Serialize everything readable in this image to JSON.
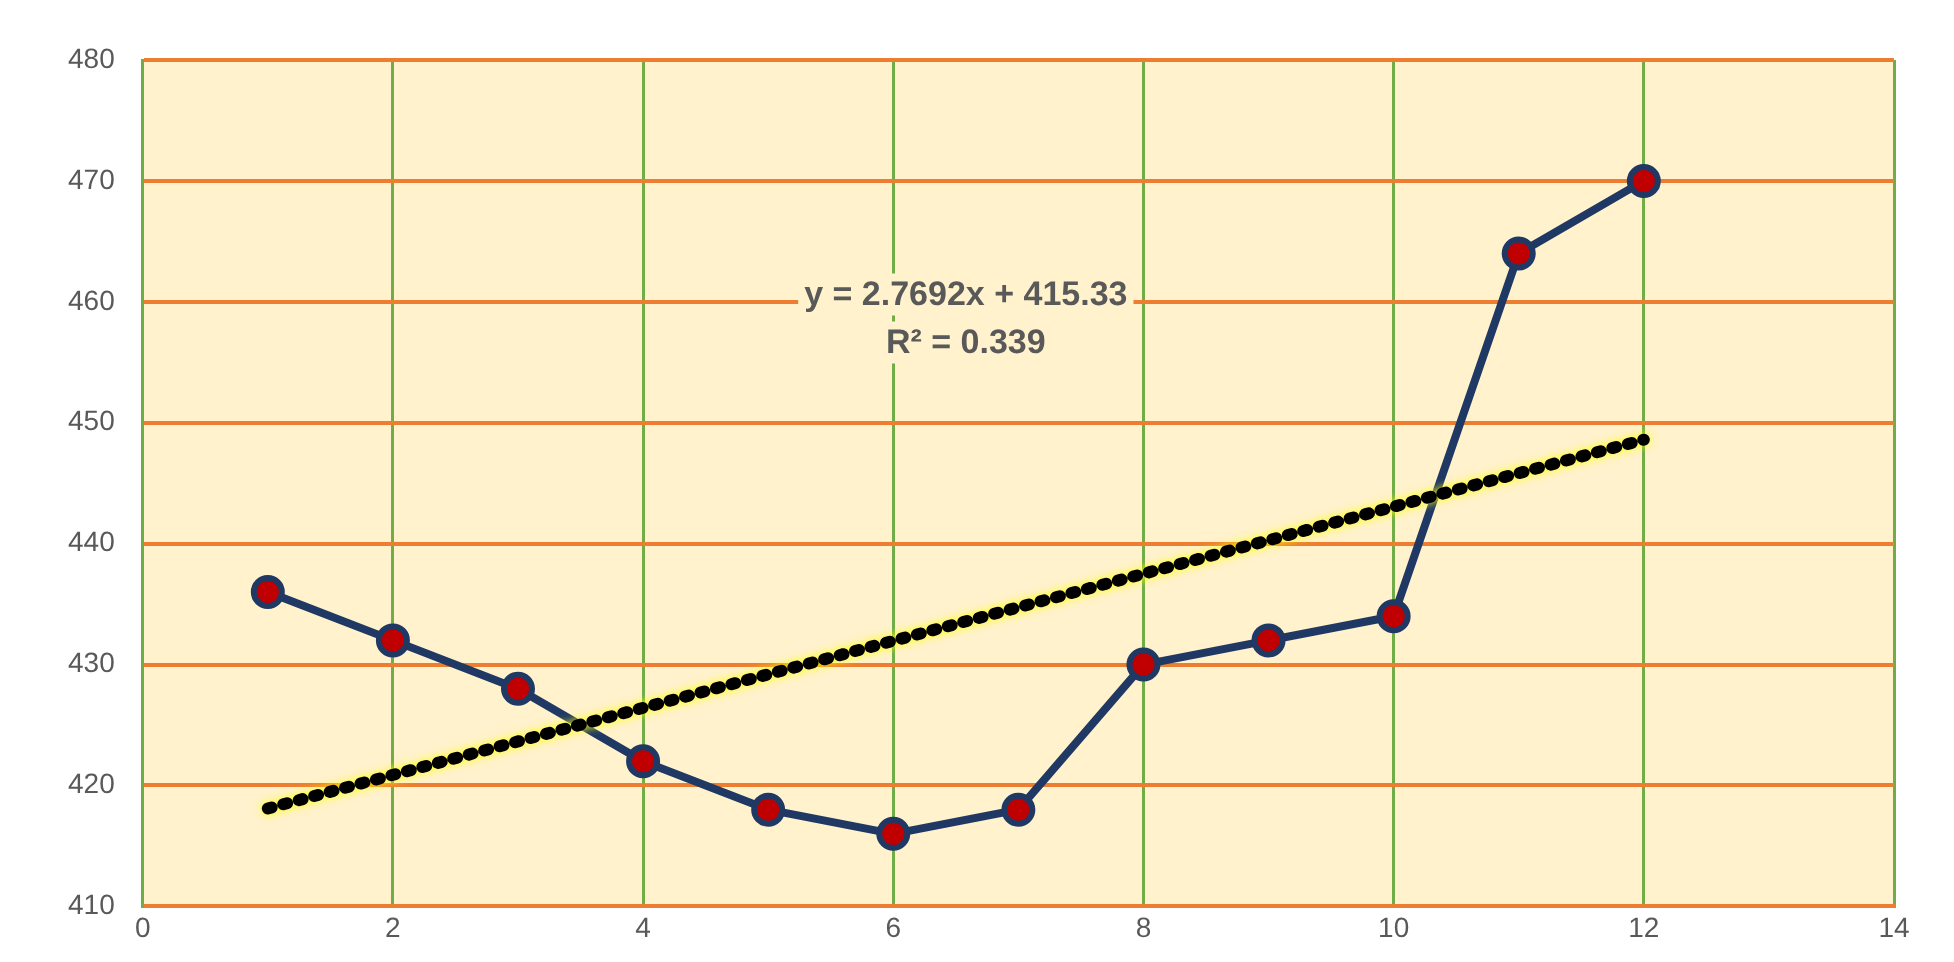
{
  "chart_data": {
    "type": "line",
    "x": [
      1,
      2,
      3,
      4,
      5,
      6,
      7,
      8,
      9,
      10,
      11,
      12
    ],
    "series": [
      {
        "color": "#1f3864",
        "marker": "circle",
        "line_style": "solid",
        "values": [
          436,
          432,
          428,
          422,
          418,
          416,
          418,
          430,
          432,
          434,
          464,
          470
        ]
      },
      {
        "color": "#000000",
        "marker": "none",
        "line_style": "dotted",
        "x": [
          1,
          12
        ],
        "values": [
          418.1,
          448.6
        ]
      }
    ],
    "xlim": [
      0,
      14
    ],
    "xticks": [
      0,
      2,
      4,
      6,
      8,
      10,
      12,
      14
    ],
    "ylim": [
      410,
      480
    ],
    "yticks": [
      410,
      420,
      430,
      440,
      450,
      460,
      470,
      480
    ],
    "grid": true,
    "legend": false,
    "annotations": [
      "y = 2.7692x + 415.33",
      "R² = 0.339"
    ]
  }
}
